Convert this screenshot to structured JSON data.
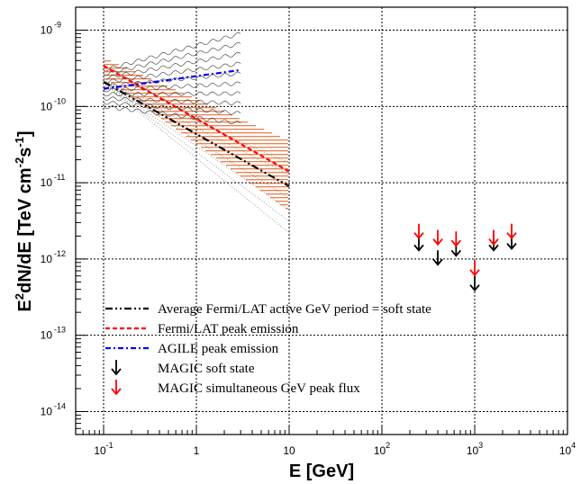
{
  "chart_data": {
    "type": "scatter",
    "title": "",
    "xlabel": "E [GeV]",
    "ylabel": {
      "pre": "E",
      "sup1": "2",
      "mid": "dN/dE [TeV cm",
      "sup2": "-2",
      "mid2": "s",
      "sup3": "-1",
      "post": "]"
    },
    "x_scale": "log",
    "y_scale": "log",
    "xlim": [
      0.05,
      10000
    ],
    "ylim": [
      5e-15,
      2e-09
    ],
    "grid": true,
    "x_ticks": [
      {
        "value": 0.1,
        "base": "10",
        "exp": "-1"
      },
      {
        "value": 1,
        "base": "1",
        "exp": ""
      },
      {
        "value": 10,
        "base": "10",
        "exp": ""
      },
      {
        "value": 100,
        "base": "10",
        "exp": "2"
      },
      {
        "value": 1000,
        "base": "10",
        "exp": "3"
      },
      {
        "value": 10000,
        "base": "10",
        "exp": "4"
      }
    ],
    "y_ticks": [
      {
        "value": 1e-14,
        "base": "10",
        "exp": "-14"
      },
      {
        "value": 1e-13,
        "base": "10",
        "exp": "-13"
      },
      {
        "value": 1e-12,
        "base": "10",
        "exp": "-12"
      },
      {
        "value": 1e-11,
        "base": "10",
        "exp": "-11"
      },
      {
        "value": 1e-10,
        "base": "10",
        "exp": "-10"
      },
      {
        "value": 1e-09,
        "base": "10",
        "exp": "-9"
      }
    ],
    "series": [
      {
        "name": "Average Fermi/LAT active GeV period = soft state",
        "kind": "line",
        "style": "dash-dot-dot",
        "color": "#000000",
        "x": [
          0.1,
          10
        ],
        "y": [
          2.1e-10,
          9e-12
        ],
        "band_low": [
          2e-10,
          2.2e-12
        ],
        "band_high": [
          2.2e-10,
          1.8e-11
        ]
      },
      {
        "name": "Fermi/LAT peak emission",
        "kind": "line",
        "style": "dashed",
        "color": "#ff0000",
        "x": [
          0.1,
          10
        ],
        "y": [
          3.4e-10,
          1.4e-11
        ],
        "band_low": [
          2.4e-10,
          4.2e-12
        ],
        "band_high": [
          4.4e-10,
          3.6e-11
        ]
      },
      {
        "name": "AGILE peak emission",
        "kind": "line",
        "style": "dash-dot",
        "color": "#0000ff",
        "x": [
          0.1,
          3
        ],
        "y": [
          1.7e-10,
          3e-10
        ],
        "band_low": [
          1e-10,
          6e-11
        ],
        "band_high": [
          3e-10,
          9e-10
        ]
      },
      {
        "name": "MAGIC soft state",
        "kind": "upper_limits",
        "color": "#000000",
        "x": [
          250,
          400,
          630,
          1000,
          1600,
          2500
        ],
        "y": [
          2e-12,
          1.3e-12,
          1.7e-12,
          6e-13,
          2e-12,
          2.1e-12
        ]
      },
      {
        "name": "MAGIC simultaneous GeV peak flux",
        "kind": "upper_limits",
        "color": "#ff0000",
        "x": [
          250,
          400,
          630,
          1000,
          1600,
          2500
        ],
        "y": [
          2.9e-12,
          2.4e-12,
          2.3e-12,
          9.5e-13,
          2.4e-12,
          2.9e-12
        ]
      }
    ],
    "legend": {
      "placement": "bottom-left",
      "entries": [
        "Average Fermi/LAT active GeV period = soft state",
        "Fermi/LAT peak emission",
        "AGILE peak emission",
        "MAGIC soft state",
        "MAGIC simultaneous GeV peak flux"
      ]
    }
  }
}
